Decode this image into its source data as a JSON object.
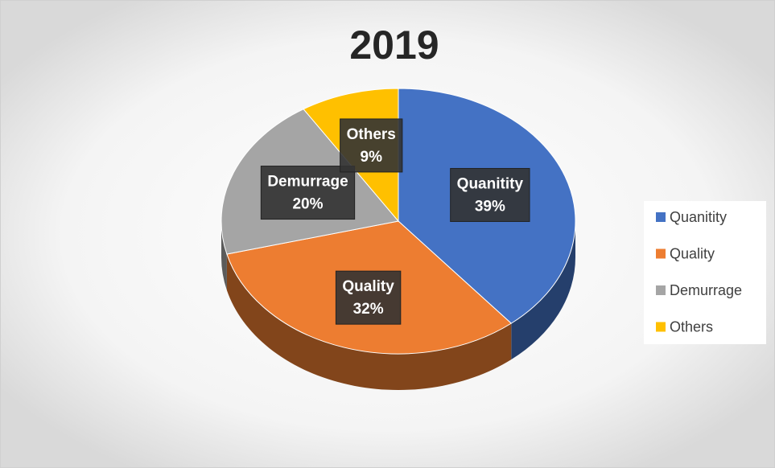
{
  "chart_data": {
    "type": "pie",
    "title": "2019",
    "categories": [
      "Quanitity",
      "Quality",
      "Demurrage",
      "Others"
    ],
    "values": [
      39,
      32,
      20,
      9
    ],
    "value_labels": [
      "39%",
      "32%",
      "20%",
      "9%"
    ],
    "colors": [
      "#4472c4",
      "#ed7d31",
      "#a5a5a5",
      "#ffc000"
    ],
    "legend": "right"
  }
}
